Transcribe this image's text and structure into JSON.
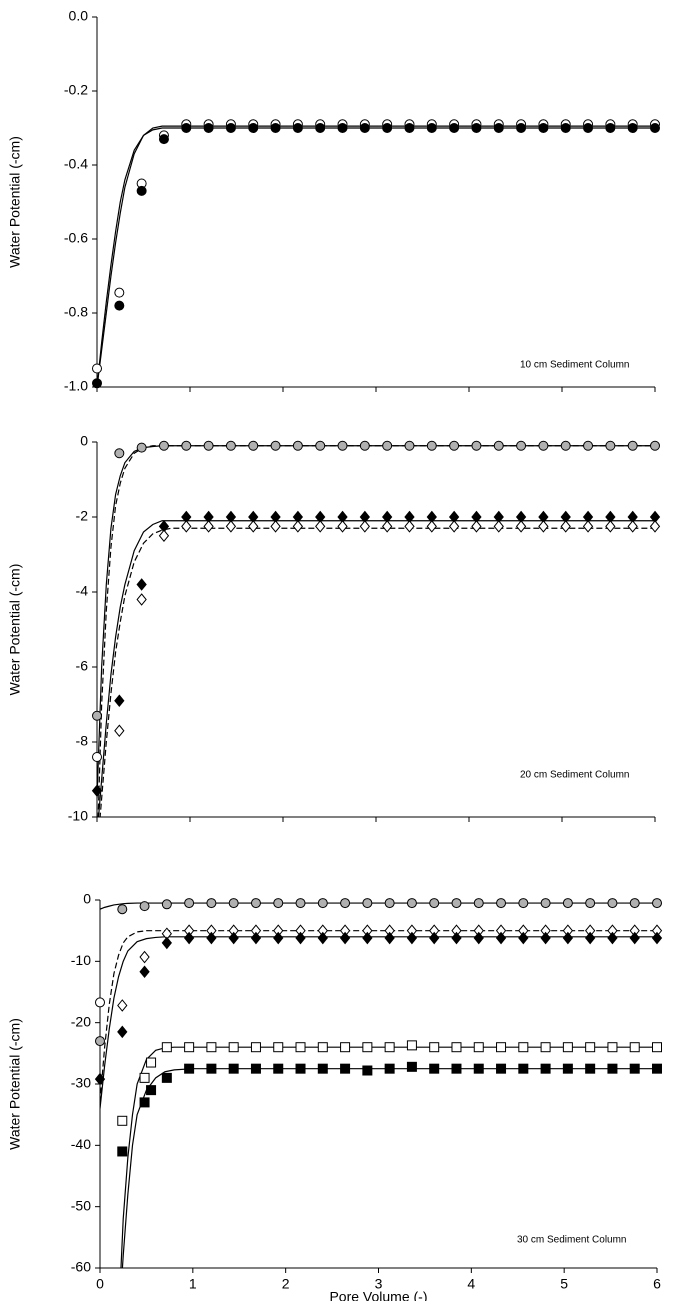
{
  "chart_data": [
    {
      "type": "scatter",
      "annotation": "10 cm Sediment Column",
      "ylabel": "Water Potential (-cm)",
      "xlim": [
        0,
        6
      ],
      "xticks": [
        0,
        1,
        2,
        3,
        4,
        5,
        6
      ],
      "xtick_labels": false,
      "ylim": [
        -1,
        0
      ],
      "yticks": [
        {
          "value": 0,
          "label": "0.0"
        },
        -0.2,
        -0.4,
        -0.6,
        -0.8,
        {
          "value": -1,
          "label": "-1.0"
        }
      ],
      "x": [
        0,
        0.24,
        0.48,
        0.72,
        0.96,
        1.2,
        1.44,
        1.68,
        1.92,
        2.16,
        2.4,
        2.64,
        2.88,
        3.12,
        3.36,
        3.6,
        3.84,
        4.08,
        4.32,
        4.56,
        4.8,
        5.04,
        5.28,
        5.52,
        5.76,
        6
      ],
      "series": [
        {
          "marker": "circle",
          "fill": "#ffffff",
          "values": [
            -0.95,
            -0.745,
            -0.45,
            -0.32,
            -0.29,
            -0.29,
            -0.29,
            -0.29,
            -0.29,
            -0.29,
            -0.29,
            -0.29,
            -0.29,
            -0.29,
            -0.29,
            -0.29,
            -0.29,
            -0.29,
            -0.29,
            -0.29,
            -0.29,
            -0.29,
            -0.29,
            -0.29,
            -0.29,
            -0.29
          ]
        },
        {
          "marker": "circle",
          "fill": "#000000",
          "values": [
            -0.99,
            -0.78,
            -0.47,
            -0.33,
            -0.3,
            -0.3,
            -0.3,
            -0.3,
            -0.3,
            -0.3,
            -0.3,
            -0.3,
            -0.3,
            -0.3,
            -0.3,
            -0.3,
            -0.3,
            -0.3,
            -0.3,
            -0.3,
            -0.3,
            -0.3,
            -0.3,
            -0.3,
            -0.3,
            -0.3
          ]
        }
      ],
      "curves": [
        {
          "dash": false,
          "x": [
            0,
            0.05,
            0.1,
            0.15,
            0.2,
            0.25,
            0.3,
            0.4,
            0.5,
            0.6,
            0.7,
            0.8,
            1,
            2,
            3,
            4,
            5,
            6
          ],
          "values": [
            -1,
            -0.9,
            -0.8,
            -0.7,
            -0.61,
            -0.53,
            -0.46,
            -0.37,
            -0.32,
            -0.3,
            -0.295,
            -0.295,
            -0.295,
            -0.295,
            -0.295,
            -0.295,
            -0.295,
            -0.295
          ]
        },
        {
          "dash": false,
          "x": [
            0,
            0.05,
            0.1,
            0.15,
            0.2,
            0.25,
            0.3,
            0.4,
            0.5,
            0.6,
            0.7,
            0.8,
            1,
            2,
            3,
            4,
            5,
            6
          ],
          "values": [
            -1,
            -0.88,
            -0.77,
            -0.67,
            -0.58,
            -0.5,
            -0.44,
            -0.36,
            -0.32,
            -0.305,
            -0.3,
            -0.3,
            -0.3,
            -0.3,
            -0.3,
            -0.3,
            -0.3,
            -0.3
          ]
        }
      ]
    },
    {
      "type": "scatter",
      "annotation": "20 cm Sediment Column",
      "ylabel": "Water Potential (-cm)",
      "xlim": [
        0,
        6
      ],
      "xticks": [
        0,
        1,
        2,
        3,
        4,
        5,
        6
      ],
      "xtick_labels": false,
      "ylim": [
        -10,
        0
      ],
      "yticks": [
        0,
        -2,
        -4,
        -6,
        -8,
        -10
      ],
      "x": [
        0,
        0.24,
        0.48,
        0.72,
        0.96,
        1.2,
        1.44,
        1.68,
        1.92,
        2.16,
        2.4,
        2.64,
        2.88,
        3.12,
        3.36,
        3.6,
        3.84,
        4.08,
        4.32,
        4.56,
        4.8,
        5.04,
        5.28,
        5.52,
        5.76,
        6
      ],
      "series": [
        {
          "marker": "circle",
          "fill": "#b0b0b0",
          "values": [
            -7.3,
            -0.3,
            -0.15,
            -0.1,
            -0.1,
            -0.1,
            -0.1,
            -0.1,
            -0.1,
            -0.1,
            -0.1,
            -0.1,
            -0.1,
            -0.1,
            -0.1,
            -0.1,
            -0.1,
            -0.1,
            -0.1,
            -0.1,
            -0.1,
            -0.1,
            -0.1,
            -0.1,
            -0.1,
            -0.1
          ]
        },
        {
          "marker": "diamond",
          "fill": "#000000",
          "values": [
            -9.3,
            -6.9,
            -3.8,
            -2.25,
            -2,
            -2,
            -2,
            -2,
            -2,
            -2,
            -2,
            -2,
            -2,
            -2,
            -2,
            -2,
            -2,
            -2,
            -2,
            -2,
            -2,
            -2,
            -2,
            -2,
            -2,
            -2
          ]
        },
        {
          "marker": "diamond",
          "fill": "#ffffff",
          "values": [
            null,
            -7.7,
            -4.2,
            -2.5,
            -2.25,
            -2.25,
            -2.25,
            -2.25,
            -2.25,
            -2.25,
            -2.25,
            -2.25,
            -2.25,
            -2.25,
            -2.25,
            -2.25,
            -2.25,
            -2.25,
            -2.25,
            -2.25,
            -2.25,
            -2.25,
            -2.25,
            -2.25,
            -2.25,
            -2.25
          ]
        },
        {
          "marker": "circle",
          "fill": "#ffffff",
          "x": [
            0
          ],
          "values": [
            -8.4
          ]
        }
      ],
      "curves": [
        {
          "dash": false,
          "x": [
            0,
            0.05,
            0.1,
            0.15,
            0.2,
            0.25,
            0.3,
            0.4,
            0.5,
            0.6,
            0.7,
            0.8,
            1,
            2,
            3,
            4,
            5,
            6
          ],
          "values": [
            -9.5,
            -6,
            -3.8,
            -2.3,
            -1.4,
            -0.9,
            -0.55,
            -0.25,
            -0.15,
            -0.12,
            -0.1,
            -0.1,
            -0.1,
            -0.1,
            -0.1,
            -0.1,
            -0.1,
            -0.1
          ]
        },
        {
          "dash": true,
          "x": [
            0,
            0.05,
            0.1,
            0.15,
            0.2,
            0.25,
            0.3,
            0.4,
            0.5,
            0.6,
            0.7,
            0.8,
            1,
            2,
            3,
            4,
            5,
            6
          ],
          "values": [
            -11,
            -7,
            -4.5,
            -2.8,
            -1.7,
            -1.1,
            -0.7,
            -0.3,
            -0.15,
            -0.1,
            -0.1,
            -0.1,
            -0.1,
            -0.1,
            -0.1,
            -0.1,
            -0.1,
            -0.1
          ]
        },
        {
          "dash": false,
          "x": [
            0,
            0.05,
            0.1,
            0.15,
            0.2,
            0.25,
            0.3,
            0.4,
            0.5,
            0.6,
            0.7,
            0.8,
            1,
            2,
            3,
            4,
            5,
            6
          ],
          "values": [
            -10.5,
            -9,
            -7.5,
            -6.2,
            -5.2,
            -4.4,
            -3.8,
            -2.9,
            -2.4,
            -2.2,
            -2.1,
            -2.1,
            -2.1,
            -2.1,
            -2.1,
            -2.1,
            -2.1,
            -2.1
          ]
        },
        {
          "dash": true,
          "x": [
            0,
            0.05,
            0.1,
            0.15,
            0.2,
            0.25,
            0.3,
            0.4,
            0.5,
            0.6,
            0.7,
            0.8,
            1,
            2,
            3,
            4,
            5,
            6
          ],
          "values": [
            -11,
            -9.5,
            -8,
            -6.7,
            -5.6,
            -4.8,
            -4.1,
            -3.2,
            -2.7,
            -2.45,
            -2.35,
            -2.3,
            -2.3,
            -2.3,
            -2.3,
            -2.3,
            -2.3,
            -2.3
          ]
        }
      ]
    },
    {
      "type": "scatter",
      "annotation": "30 cm Sediment Column",
      "ylabel": "Water Potential (-cm)",
      "xlabel": "Pore Volume (-)",
      "xlim": [
        0,
        6
      ],
      "xticks": [
        0,
        1,
        2,
        3,
        4,
        5,
        6
      ],
      "xtick_labels": true,
      "ylim": [
        -60,
        0
      ],
      "yticks": [
        0,
        -10,
        -20,
        -30,
        -40,
        -50,
        -60
      ],
      "x": [
        0,
        0.24,
        0.48,
        0.72,
        0.96,
        1.2,
        1.44,
        1.68,
        1.92,
        2.16,
        2.4,
        2.64,
        2.88,
        3.12,
        3.36,
        3.6,
        3.84,
        4.08,
        4.32,
        4.56,
        4.8,
        5.04,
        5.28,
        5.52,
        5.76,
        6
      ],
      "series": [
        {
          "marker": "circle",
          "fill": "#b0b0b0",
          "values": [
            -23,
            -1.5,
            -1,
            -0.7,
            -0.5,
            -0.5,
            -0.5,
            -0.5,
            -0.5,
            -0.5,
            -0.5,
            -0.5,
            -0.5,
            -0.5,
            -0.5,
            -0.5,
            -0.5,
            -0.5,
            -0.5,
            -0.5,
            -0.5,
            -0.5,
            -0.5,
            -0.5,
            -0.5,
            -0.5
          ]
        },
        {
          "marker": "circle",
          "fill": "#ffffff",
          "x": [
            0
          ],
          "values": [
            -16.7
          ]
        },
        {
          "marker": "diamond",
          "fill": "#ffffff",
          "values": [
            null,
            -17.2,
            -9.3,
            -5.5,
            -5,
            -5,
            -5,
            -5,
            -5,
            -5,
            -5,
            -5,
            -5,
            -5,
            -5,
            -5,
            -5,
            -5,
            -5,
            -5,
            -5,
            -5,
            -5,
            -5,
            -5,
            -5
          ]
        },
        {
          "marker": "diamond",
          "fill": "#000000",
          "values": [
            -29.2,
            -21.5,
            -11.7,
            -7,
            -6.2,
            -6.2,
            -6.2,
            -6.2,
            -6.2,
            -6.2,
            -6.2,
            -6.2,
            -6.2,
            -6.2,
            -6.2,
            -6.2,
            -6.2,
            -6.2,
            -6.2,
            -6.2,
            -6.2,
            -6.2,
            -6.2,
            -6.2,
            -6.2,
            -6.2
          ]
        },
        {
          "marker": "square",
          "fill": "#ffffff",
          "x": [
            0.24,
            0.48,
            0.55,
            0.72,
            0.96,
            1.2,
            1.44,
            1.68,
            1.92,
            2.16,
            2.4,
            2.64,
            2.88,
            3.12,
            3.36,
            3.6,
            3.84,
            4.08,
            4.32,
            4.56,
            4.8,
            5.04,
            5.28,
            5.52,
            5.76,
            6
          ],
          "values": [
            -36,
            -29,
            -26.5,
            -24,
            -24,
            -24,
            -24,
            -24,
            -24,
            -24,
            -24,
            -24,
            -24,
            -24,
            -23.7,
            -24,
            -24,
            -24,
            -24,
            -24,
            -24,
            -24,
            -24,
            -24,
            -24,
            -24
          ]
        },
        {
          "marker": "square",
          "fill": "#000000",
          "x": [
            0.24,
            0.48,
            0.55,
            0.72,
            0.96,
            1.2,
            1.44,
            1.68,
            1.92,
            2.16,
            2.4,
            2.64,
            2.88,
            3.12,
            3.36,
            3.6,
            3.84,
            4.08,
            4.32,
            4.56,
            4.8,
            5.04,
            5.28,
            5.52,
            5.76,
            6
          ],
          "values": [
            -41,
            -33,
            -31,
            -29,
            -27.5,
            -27.5,
            -27.5,
            -27.5,
            -27.5,
            -27.5,
            -27.5,
            -27.5,
            -27.8,
            -27.5,
            -27.2,
            -27.5,
            -27.5,
            -27.5,
            -27.5,
            -27.5,
            -27.5,
            -27.5,
            -27.5,
            -27.5,
            -27.5,
            -27.5
          ]
        }
      ],
      "curves": [
        {
          "dash": false,
          "x": [
            0,
            0.05,
            0.1,
            0.15,
            0.2,
            0.25,
            0.3,
            0.4,
            0.5,
            0.6,
            0.7,
            0.8,
            1,
            2,
            3,
            4,
            5,
            6
          ],
          "values": [
            -1.5,
            -1.2,
            -1,
            -0.8,
            -0.7,
            -0.6,
            -0.55,
            -0.5,
            -0.5,
            -0.5,
            -0.5,
            -0.5,
            -0.5,
            -0.5,
            -0.5,
            -0.5,
            -0.5,
            -0.5
          ]
        },
        {
          "dash": true,
          "x": [
            0,
            0.05,
            0.1,
            0.15,
            0.2,
            0.25,
            0.3,
            0.4,
            0.5,
            0.6,
            0.7,
            0.8,
            1,
            2,
            3,
            4,
            5,
            6
          ],
          "values": [
            -33,
            -24,
            -17,
            -12,
            -9,
            -7,
            -6,
            -5.2,
            -5,
            -5,
            -5,
            -5,
            -5,
            -5,
            -5,
            -5,
            -5,
            -5
          ]
        },
        {
          "dash": false,
          "x": [
            0,
            0.05,
            0.1,
            0.15,
            0.2,
            0.25,
            0.3,
            0.4,
            0.5,
            0.6,
            0.7,
            0.8,
            1,
            2,
            3,
            4,
            5,
            6
          ],
          "values": [
            -34,
            -27,
            -21,
            -16,
            -12.5,
            -10,
            -8.3,
            -6.8,
            -6.3,
            -6.1,
            -6,
            -6,
            -6,
            -6,
            -6,
            -6,
            -6,
            -6
          ]
        },
        {
          "dash": false,
          "x": [
            0.22,
            0.25,
            0.3,
            0.35,
            0.4,
            0.5,
            0.6,
            0.7,
            0.8,
            1,
            2,
            3,
            4,
            5,
            6
          ],
          "values": [
            -62,
            -52,
            -42,
            -35,
            -30,
            -26,
            -24.5,
            -24.1,
            -24,
            -24,
            -24,
            -24,
            -24,
            -24,
            -24
          ]
        },
        {
          "dash": false,
          "x": [
            0.22,
            0.25,
            0.3,
            0.35,
            0.4,
            0.5,
            0.6,
            0.7,
            0.8,
            1,
            2,
            3,
            4,
            5,
            6
          ],
          "values": [
            -65,
            -58,
            -48,
            -40,
            -35,
            -31,
            -29,
            -28,
            -27.7,
            -27.5,
            -27.5,
            -27.5,
            -27.5,
            -27.5,
            -27.5
          ]
        }
      ]
    }
  ]
}
